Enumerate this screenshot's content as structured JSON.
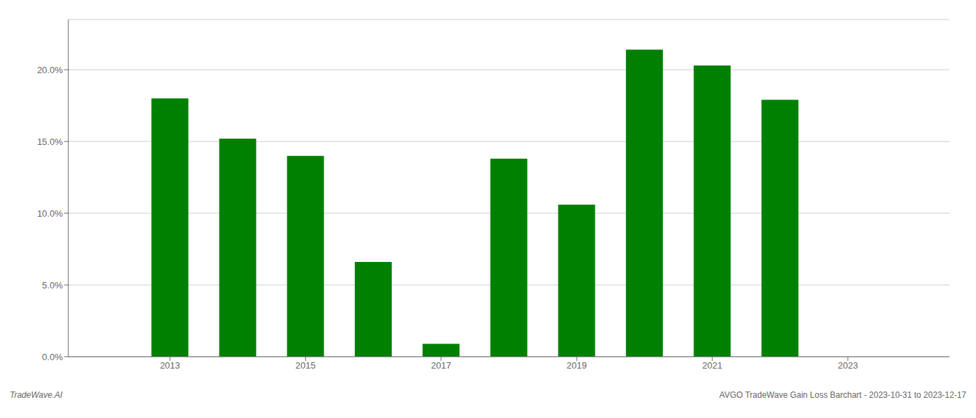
{
  "chart_data": {
    "type": "bar",
    "x": [
      2013,
      2014,
      2015,
      2016,
      2017,
      2018,
      2019,
      2020,
      2021,
      2022
    ],
    "values": [
      0.18,
      0.152,
      0.14,
      0.066,
      0.009,
      0.138,
      0.106,
      0.214,
      0.203,
      0.179
    ],
    "color": "#008000",
    "xlim": [
      2011.5,
      2024.5
    ],
    "xticks": [
      2013,
      2015,
      2017,
      2019,
      2021,
      2023
    ],
    "ylim": [
      0.0,
      0.235
    ],
    "yticks": [
      {
        "value": 0.0,
        "label": "0.0%"
      },
      {
        "value": 0.05,
        "label": "5.0%"
      },
      {
        "value": 0.1,
        "label": "10.0%"
      },
      {
        "value": 0.15,
        "label": "15.0%"
      },
      {
        "value": 0.2,
        "label": "20.0%"
      }
    ],
    "grid": true,
    "annotations": [
      "TradeWave.AI",
      "AVGO TradeWave Gain Loss Barchart - 2023-10-31 to 2023-12-17"
    ]
  }
}
